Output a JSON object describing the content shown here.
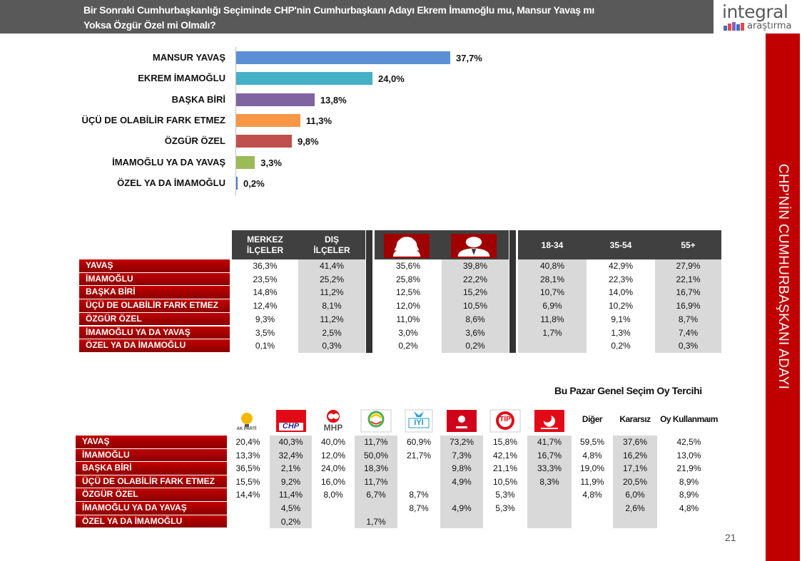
{
  "header": {
    "title_line1": "Bir Sonraki Cumhurbaşkanlığı Seçiminde CHP'nin Cumhurbaşkanı Adayı Ekrem İmamoğlu mu, Mansur Yavaş mı",
    "title_line2": "Yoksa Özgür Özel mi Olmalı?"
  },
  "logo": {
    "word": "integral",
    "sub": "araştırma"
  },
  "side_title": "CHP'NİN CUMHURBAŞKANI ADAYI",
  "chart_data": {
    "type": "bar",
    "orientation": "horizontal",
    "categories": [
      "MANSUR YAVAŞ",
      "EKREM İMAMOĞLU",
      "BAŞKA BİRİ",
      "ÜÇÜ DE OLABİLİR FARK ETMEZ",
      "ÖZGÜR ÖZEL",
      "İMAMOĞLU YA DA YAVAŞ",
      "ÖZEL YA DA İMAMOĞLU"
    ],
    "values": [
      37.7,
      24.0,
      13.8,
      11.3,
      9.8,
      3.3,
      0.2
    ],
    "value_labels": [
      "37,7%",
      "24,0%",
      "13,8%",
      "11,3%",
      "9,8%",
      "3,3%",
      "0,2%"
    ],
    "colors": [
      "#5b8fd6",
      "#45b0c6",
      "#8064a2",
      "#f79646",
      "#c0504d",
      "#9bbb59",
      "#4f81bd"
    ],
    "xlim": [
      0,
      37.7
    ],
    "grid": false,
    "legend": "none"
  },
  "table1": {
    "columns": [
      "MERKEZ İLÇELER",
      "DIŞ İLÇELER",
      "female-icon",
      "male-icon",
      "18-34",
      "35-54",
      "55+"
    ],
    "header_lines": [
      [
        "MERKEZ",
        "İLÇELER"
      ],
      [
        "DIŞ",
        "İLÇELER"
      ],
      [],
      [],
      [
        "18-34"
      ],
      [
        "35-54"
      ],
      [
        "55+"
      ]
    ],
    "rows": [
      {
        "label": "YAVAŞ",
        "values": [
          "36,3%",
          "41,4%",
          "35,6%",
          "39,8%",
          "40,8%",
          "42,9%",
          "27,9%"
        ]
      },
      {
        "label": "İMAMOĞLU",
        "values": [
          "23,5%",
          "25,2%",
          "25,8%",
          "22,2%",
          "28,1%",
          "22,3%",
          "22,1%"
        ]
      },
      {
        "label": "BAŞKA BİRİ",
        "values": [
          "14,8%",
          "11,2%",
          "12,5%",
          "15,2%",
          "10,7%",
          "14,0%",
          "16,7%"
        ]
      },
      {
        "label": "ÜÇÜ DE OLABİLİR FARK ETMEZ",
        "values": [
          "12,4%",
          "8,1%",
          "12,0%",
          "10,5%",
          "6,9%",
          "10,2%",
          "16,9%"
        ]
      },
      {
        "label": "ÖZGÜR ÖZEL",
        "values": [
          "9,3%",
          "11,2%",
          "11,0%",
          "8,6%",
          "11,8%",
          "9,1%",
          "8,7%"
        ]
      },
      {
        "label": "İMAMOĞLU YA DA YAVAŞ",
        "values": [
          "3,5%",
          "2,5%",
          "3,0%",
          "3,6%",
          "1,7%",
          "1,3%",
          "7,4%"
        ]
      },
      {
        "label": "ÖZEL YA DA İMAMOĞLU",
        "values": [
          "0,1%",
          "0,3%",
          "0,2%",
          "0,2%",
          "",
          "0,2%",
          "0,3%"
        ]
      }
    ]
  },
  "table2": {
    "heading": "Bu Pazar Genel Seçim Oy Tercihi",
    "columns": [
      "AK PARTİ",
      "CHP",
      "MHP",
      "DEM",
      "İYİ",
      "ZAFER",
      "TİP",
      "YENİDEN REFAH",
      "Diğer",
      "Kararsız",
      "Oy Kullanmaım"
    ],
    "logo_texts": {
      "akp": "AK PARTİ",
      "chp": "CHP",
      "mhp": "MHP",
      "iyi": "İYİ",
      "tip": "TİP"
    },
    "rows": [
      {
        "label": "YAVAŞ",
        "values": [
          "20,4%",
          "40,3%",
          "40,0%",
          "11,7%",
          "60,9%",
          "73,2%",
          "15,8%",
          "41,7%",
          "59,5%",
          "37,6%",
          "42,5%"
        ]
      },
      {
        "label": "İMAMOĞLU",
        "values": [
          "13,3%",
          "32,4%",
          "12,0%",
          "50,0%",
          "21,7%",
          "7,3%",
          "42,1%",
          "16,7%",
          "4,8%",
          "16,2%",
          "13,0%"
        ]
      },
      {
        "label": "BAŞKA BİRİ",
        "values": [
          "36,5%",
          "2,1%",
          "24,0%",
          "18,3%",
          "",
          "9,8%",
          "21,1%",
          "33,3%",
          "19,0%",
          "17,1%",
          "21,9%"
        ]
      },
      {
        "label": "ÜÇÜ DE OLABİLİR FARK ETMEZ",
        "values": [
          "15,5%",
          "9,2%",
          "16,0%",
          "11,7%",
          "",
          "4,9%",
          "10,5%",
          "8,3%",
          "11,9%",
          "20,5%",
          "8,9%"
        ]
      },
      {
        "label": "ÖZGÜR ÖZEL",
        "values": [
          "14,4%",
          "11,4%",
          "8,0%",
          "6,7%",
          "8,7%",
          "",
          "5,3%",
          "",
          "4,8%",
          "6,0%",
          "8,9%"
        ]
      },
      {
        "label": "İMAMOĞLU YA DA YAVAŞ",
        "values": [
          "",
          "4,5%",
          "",
          "",
          "8,7%",
          "4,9%",
          "5,3%",
          "",
          "",
          "2,6%",
          "4,8%"
        ]
      },
      {
        "label": "ÖZEL YA DA İMAMOĞLU",
        "values": [
          "",
          "0,2%",
          "",
          "1,7%",
          "",
          "",
          "",
          "",
          "",
          "",
          ""
        ]
      }
    ]
  },
  "page_number": "21",
  "colors": {
    "title_bar": "#595959",
    "accent_red": "#c00000",
    "row_label_red": "#a30000",
    "header_dark": "#404040",
    "cell_light": "#d9d9d9",
    "cell_white": "#ffffff"
  }
}
